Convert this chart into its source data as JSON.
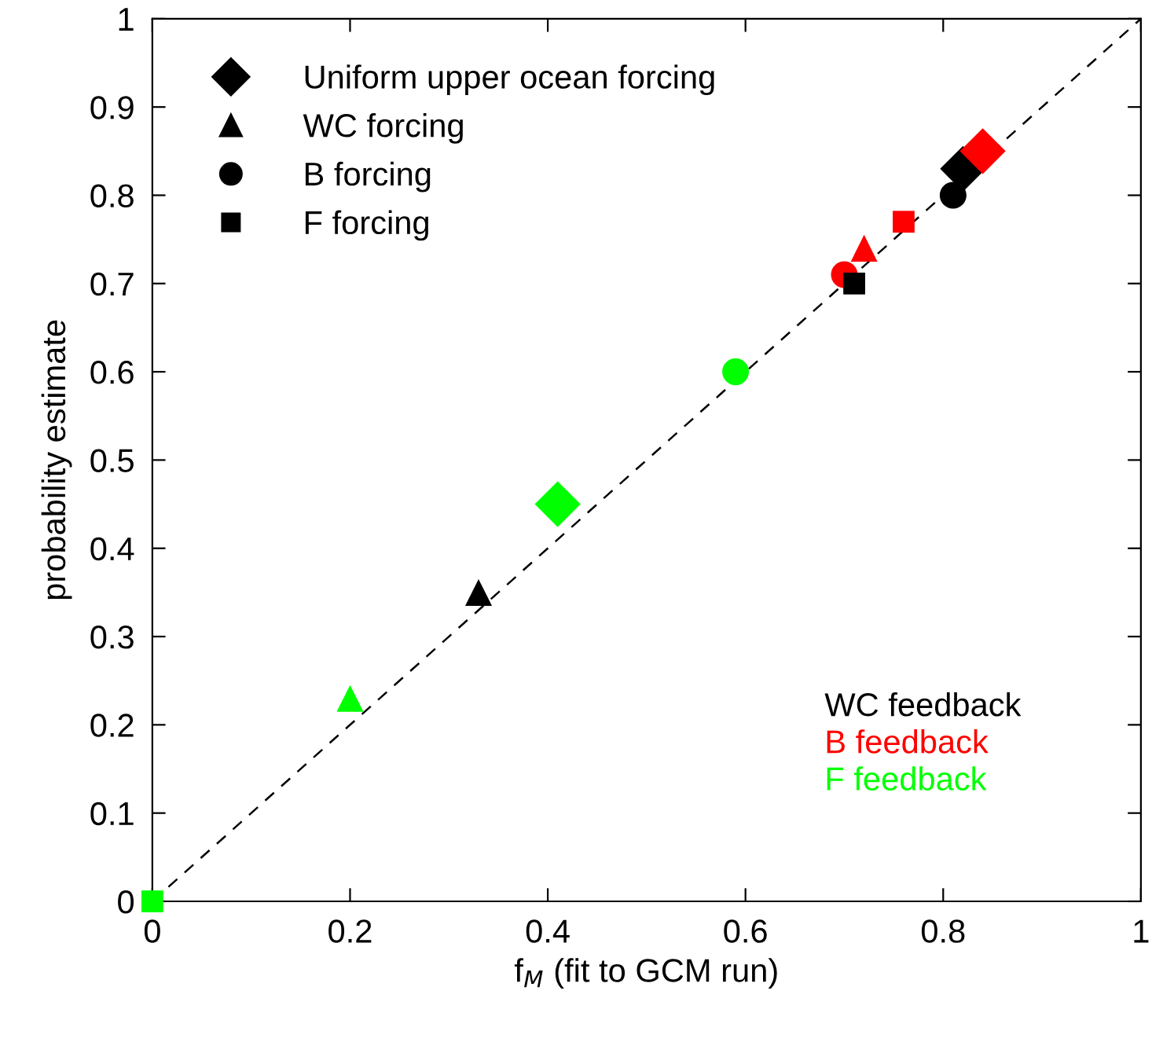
{
  "chart_data": {
    "type": "scatter",
    "xlabel": "f$_{M}$ (fit to GCM run)",
    "ylabel": "probability estimate",
    "xlim": [
      0,
      1
    ],
    "ylim": [
      0,
      1
    ],
    "xticks": [
      0,
      0.2,
      0.4,
      0.6,
      0.8,
      1
    ],
    "yticks": [
      0,
      0.1,
      0.2,
      0.3,
      0.4,
      0.5,
      0.6,
      0.7,
      0.8,
      0.9,
      1
    ],
    "legend": "top left",
    "grid": false,
    "series": [
      {
        "name": "Uniform upper ocean forcing",
        "marker": "diamond",
        "x": [
          0.82,
          0.84,
          0.41
        ],
        "values": [
          0.83,
          0.85,
          0.45
        ],
        "colors": [
          "#000000",
          "#ff0000",
          "#00ff00"
        ]
      },
      {
        "name": "WC forcing",
        "marker": "triangle",
        "x": [
          0.33,
          0.72,
          0.2
        ],
        "values": [
          0.35,
          0.74,
          0.23
        ],
        "colors": [
          "#000000",
          "#ff0000",
          "#00ff00"
        ]
      },
      {
        "name": "B forcing",
        "marker": "circle",
        "x": [
          0.81,
          0.7,
          0.59
        ],
        "values": [
          0.8,
          0.71,
          0.6
        ],
        "colors": [
          "#000000",
          "#ff0000",
          "#00ff00"
        ]
      },
      {
        "name": "F forcing",
        "marker": "square",
        "x": [
          0.71,
          0.76,
          0
        ],
        "values": [
          0.7,
          0.77,
          0
        ],
        "colors": [
          "#000000",
          "#ff0000",
          "#00ff00"
        ]
      },
      {
        "type": "line",
        "x": [
          0,
          1
        ],
        "values": [
          0,
          1
        ],
        "color": "#000000",
        "line_style": "dashed"
      }
    ],
    "annotations": [
      "WC feedback",
      "B feedback",
      "F feedback"
    ]
  }
}
